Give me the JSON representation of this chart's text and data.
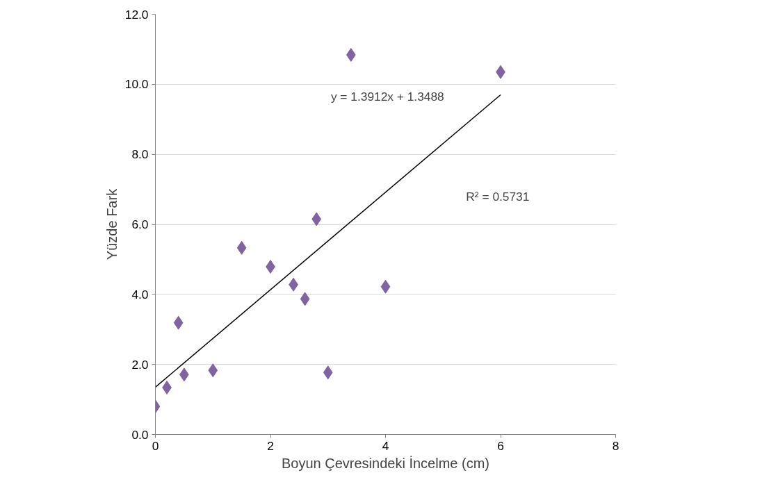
{
  "chart_data": {
    "type": "scatter",
    "xlabel": "Boyun Çevresindeki İncelme (cm)",
    "ylabel": "Yüzde Fark",
    "xlim": [
      0,
      8
    ],
    "xticks": [
      0,
      2,
      4,
      6,
      8
    ],
    "ylim": [
      0,
      12
    ],
    "yticks": [
      {
        "value": 0,
        "label": "0.0"
      },
      {
        "value": 2,
        "label": "2.0"
      },
      {
        "value": 4,
        "label": "4.0"
      },
      {
        "value": 6,
        "label": "6.0"
      },
      {
        "value": 8,
        "label": "8.0"
      },
      {
        "value": 10,
        "label": "10.0"
      },
      {
        "value": 12,
        "label": "12.0"
      }
    ],
    "grid": "y",
    "annotations": [
      "y = 1.3912x + 1.3488",
      "R² = 0.5731"
    ],
    "series": [
      {
        "color": "#8064a2",
        "marker": "diamond",
        "x": [
          0,
          0.2,
          0.4,
          0.5,
          1.0,
          1.5,
          2.0,
          2.4,
          2.6,
          2.8,
          3.0,
          3.4,
          4.0,
          6.0
        ],
        "values": [
          0.8,
          1.34,
          3.19,
          1.71,
          1.83,
          5.33,
          4.79,
          4.28,
          3.87,
          6.15,
          1.77,
          10.84,
          4.22,
          10.35
        ]
      },
      {
        "type": "line",
        "marker": "none",
        "color": "#000000",
        "x": [
          0,
          6
        ],
        "values": [
          1.35,
          9.7
        ]
      }
    ]
  }
}
